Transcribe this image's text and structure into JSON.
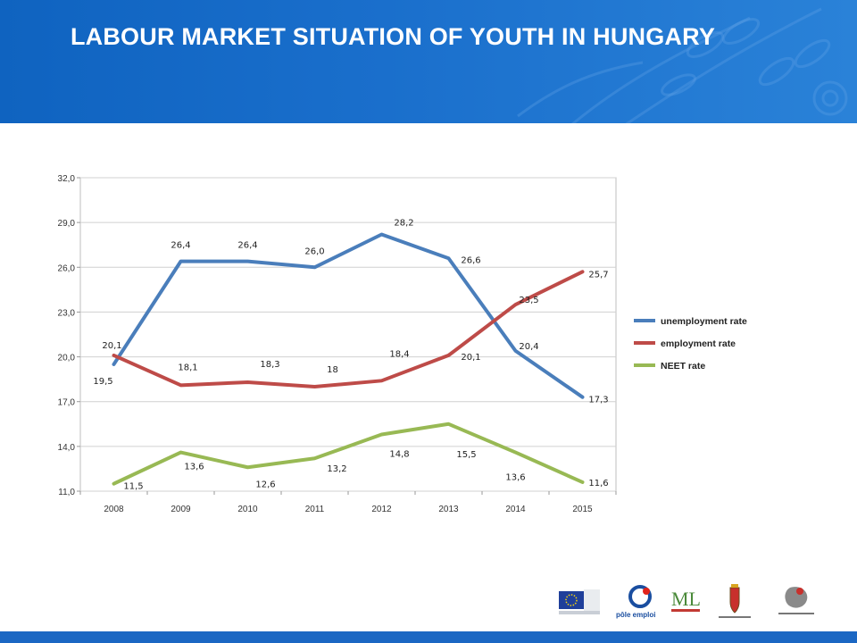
{
  "header": {
    "title": "LABOUR MARKET SITUATION OF YOUTH IN HUNGARY",
    "background_color": "#1a6fcc"
  },
  "chart_data": {
    "type": "line",
    "title": "",
    "xlabel": "",
    "ylabel": "",
    "x": [
      "2008",
      "2009",
      "2010",
      "2011",
      "2012",
      "2013",
      "2014",
      "2015"
    ],
    "ylim": [
      11.0,
      32.0
    ],
    "yticks": [
      "11,0",
      "14,0",
      "17,0",
      "20,0",
      "23,0",
      "26,0",
      "29,0",
      "32,0"
    ],
    "grid": true,
    "legend_position": "right",
    "series": [
      {
        "name": "unemployment rate",
        "color": "#4a7ebb",
        "values": [
          19.5,
          26.4,
          26.4,
          26.0,
          28.2,
          26.6,
          20.4,
          17.3
        ],
        "labels": [
          "19,5",
          "26,4",
          "26,4",
          "26,0",
          "28,2",
          "26,6",
          "20,4",
          "17,3"
        ]
      },
      {
        "name": "employment rate",
        "color": "#be4b48",
        "values": [
          20.1,
          18.1,
          18.3,
          18.0,
          18.4,
          20.1,
          23.5,
          25.7
        ],
        "labels": [
          "20,1",
          "18,1",
          "18,3",
          "18",
          "18,4",
          "20,1",
          "23,5",
          "25,7"
        ]
      },
      {
        "name": "NEET rate",
        "color": "#98b954",
        "values": [
          11.5,
          13.6,
          12.6,
          13.2,
          14.8,
          15.5,
          13.6,
          11.6
        ],
        "labels": [
          "11,5",
          "13,6",
          "12,6",
          "13,2",
          "14,8",
          "15,5",
          "13,6",
          "11,6"
        ]
      }
    ]
  },
  "footer": {
    "bar_color": "#1b67c3",
    "logos": [
      {
        "icon": "eu-flag-logo"
      },
      {
        "icon": "pole-emploi-logo",
        "text": "pôle emploi"
      },
      {
        "icon": "ministry-ml-logo",
        "text": "ML"
      },
      {
        "icon": "hungarian-coat-of-arms-logo"
      },
      {
        "icon": "employment-service-logo"
      }
    ]
  }
}
